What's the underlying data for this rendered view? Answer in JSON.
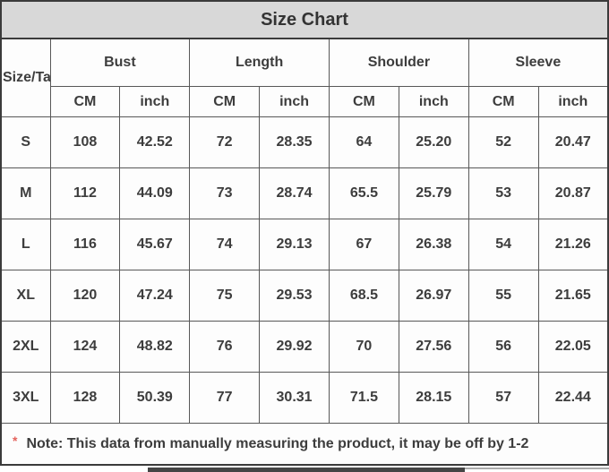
{
  "chart_data": {
    "type": "table",
    "title": "Size Chart",
    "corner_label": "Size/Tag",
    "groups": [
      "Bust",
      "Length",
      "Shoulder",
      "Sleeve"
    ],
    "unit_headers": [
      "CM",
      "inch",
      "CM",
      "inch",
      "CM",
      "inch",
      "CM",
      "inch"
    ],
    "rows": [
      {
        "size": "S",
        "values": [
          "108",
          "42.52",
          "72",
          "28.35",
          "64",
          "25.20",
          "52",
          "20.47"
        ]
      },
      {
        "size": "M",
        "values": [
          "112",
          "44.09",
          "73",
          "28.74",
          "65.5",
          "25.79",
          "53",
          "20.87"
        ]
      },
      {
        "size": "L",
        "values": [
          "116",
          "45.67",
          "74",
          "29.13",
          "67",
          "26.38",
          "54",
          "21.26"
        ]
      },
      {
        "size": "XL",
        "values": [
          "120",
          "47.24",
          "75",
          "29.53",
          "68.5",
          "26.97",
          "55",
          "21.65"
        ]
      },
      {
        "size": "2XL",
        "values": [
          "124",
          "48.82",
          "76",
          "29.92",
          "70",
          "27.56",
          "56",
          "22.05"
        ]
      },
      {
        "size": "3XL",
        "values": [
          "128",
          "50.39",
          "77",
          "30.31",
          "71.5",
          "28.15",
          "57",
          "22.44"
        ]
      }
    ],
    "note": {
      "marker": "*",
      "text": "Note: This data from manually measuring the product, it may be off by 1-2"
    }
  },
  "colors": {
    "title_bg": "#d8d8d8",
    "grid_border": "#585858",
    "outer_border": "#3b3b3b",
    "text": "#3d3d3d",
    "note_marker": "#e4625c",
    "cell_bg": "#fdfdfd"
  }
}
